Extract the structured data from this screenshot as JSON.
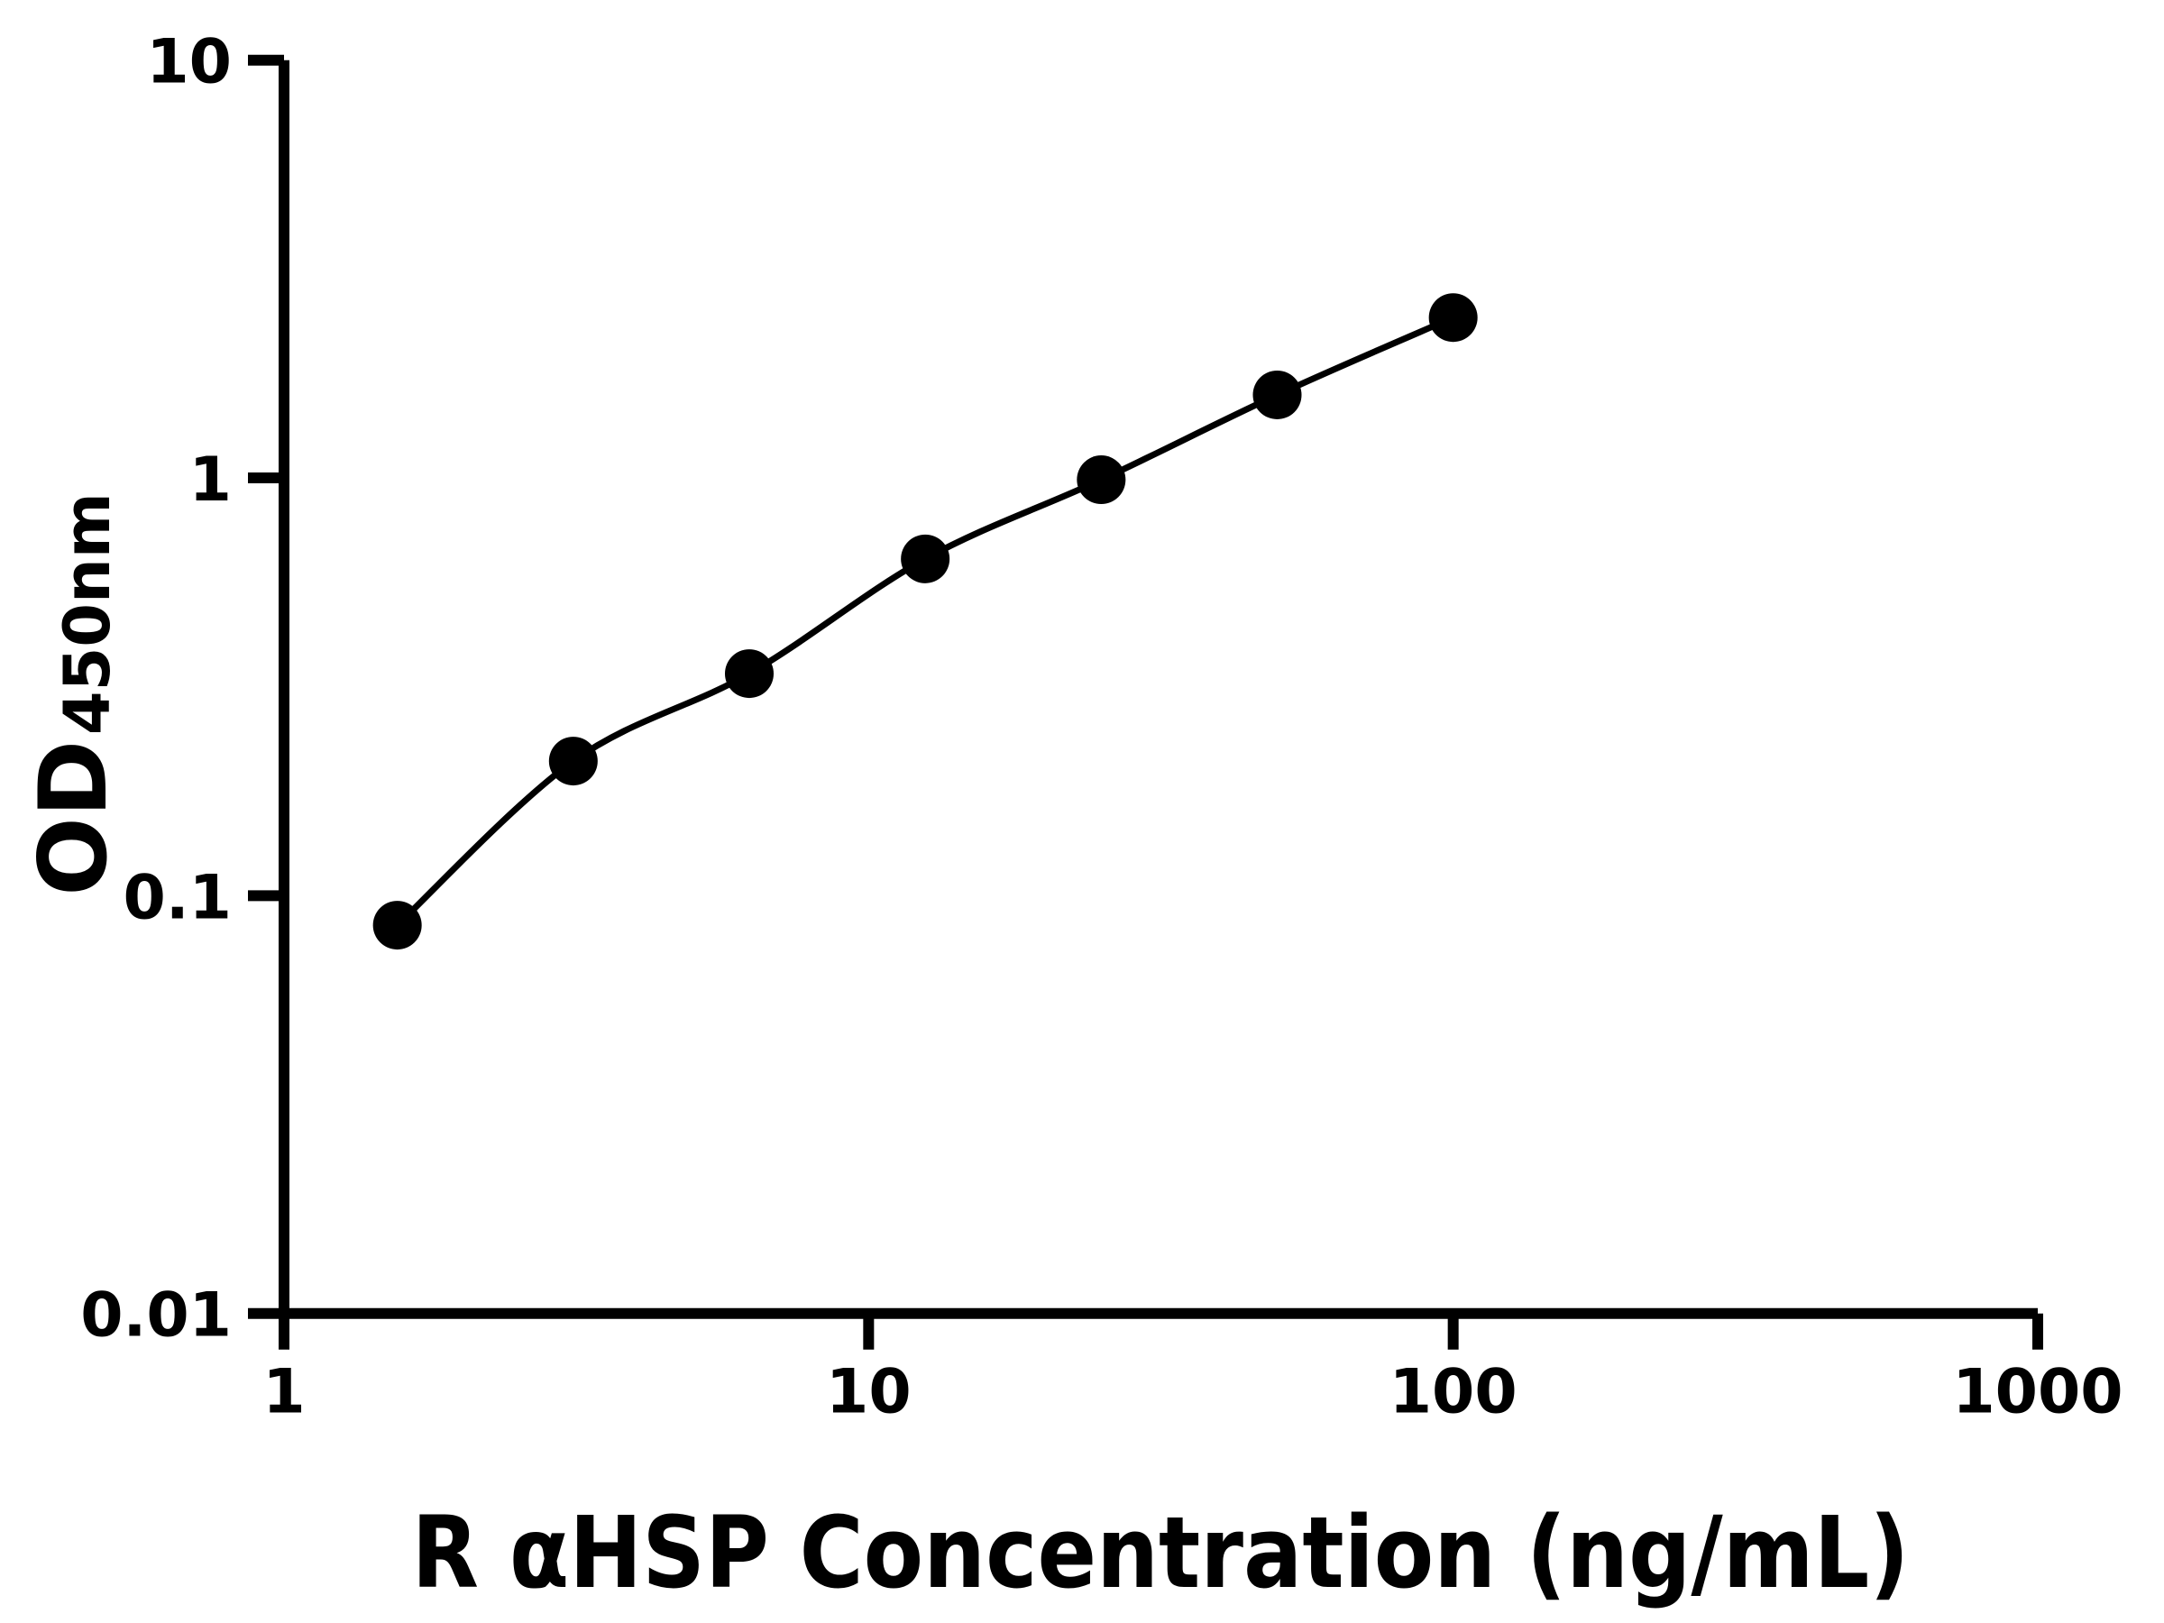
{
  "figure": {
    "background": "#ffffff",
    "ink": "#000000"
  },
  "chart_data": {
    "type": "scatter",
    "subtype": "log-log standard curve with smooth fit line",
    "title": "",
    "xlabel": "R αHSP Concentration (ng/mL)",
    "ylabel_main": "OD",
    "ylabel_sub": "450nm",
    "x_scale": "log",
    "y_scale": "log",
    "xlim": [
      1,
      1000
    ],
    "ylim": [
      0.01,
      10
    ],
    "grid": "off",
    "legend": "none",
    "x_ticks": [
      {
        "value": 1,
        "label": "1"
      },
      {
        "value": 10,
        "label": "10"
      },
      {
        "value": 100,
        "label": "100"
      },
      {
        "value": 1000,
        "label": "1000"
      }
    ],
    "y_ticks": [
      {
        "value": 10,
        "label": "10"
      },
      {
        "value": 1,
        "label": "1"
      },
      {
        "value": 0.1,
        "label": "0.1"
      },
      {
        "value": 0.01,
        "label": "0.01"
      }
    ],
    "series": [
      {
        "name": "standard-curve",
        "marker": "filled-circle",
        "color": "#000000",
        "points": [
          {
            "x": 1.5625,
            "y": 0.085
          },
          {
            "x": 3.125,
            "y": 0.21
          },
          {
            "x": 6.25,
            "y": 0.34
          },
          {
            "x": 12.5,
            "y": 0.64
          },
          {
            "x": 25,
            "y": 0.99
          },
          {
            "x": 50,
            "y": 1.58
          },
          {
            "x": 100,
            "y": 2.42
          }
        ]
      }
    ]
  }
}
